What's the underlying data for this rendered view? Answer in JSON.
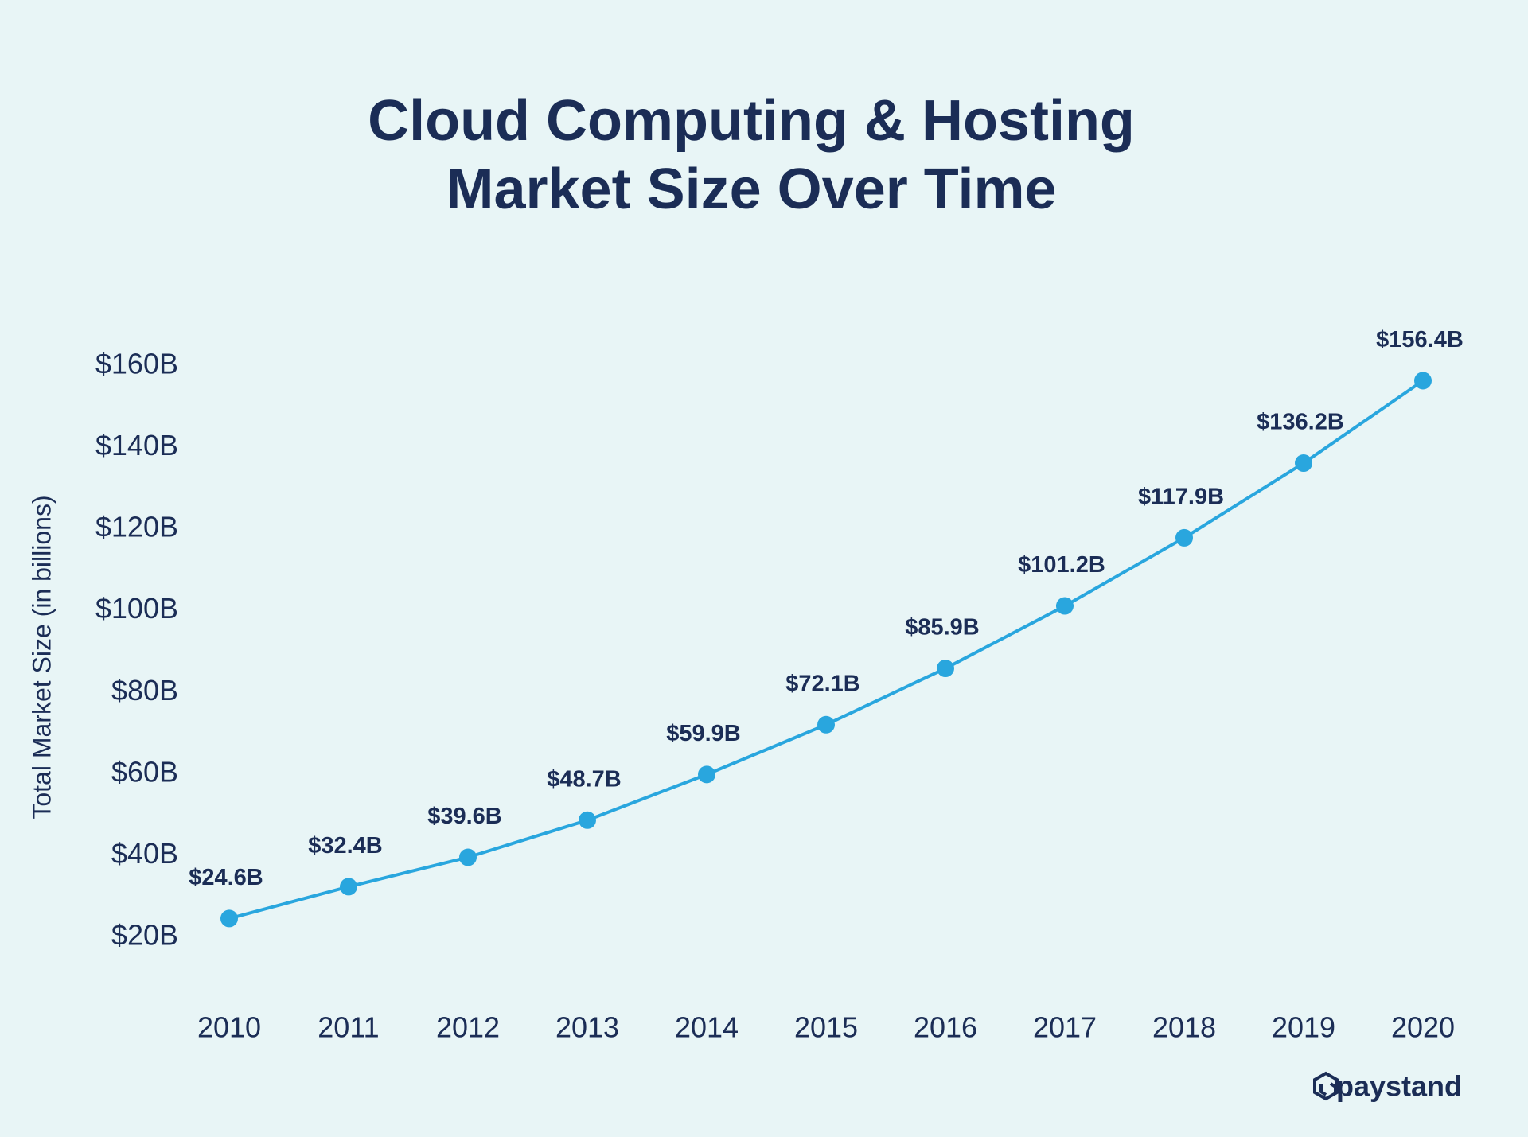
{
  "chart_data": {
    "type": "line",
    "title": [
      "Cloud Computing & Hosting",
      "Market Size Over Time"
    ],
    "y_label": "Total Market Size (in billions)",
    "categories": [
      "2010",
      "2011",
      "2012",
      "2013",
      "2014",
      "2015",
      "2016",
      "2017",
      "2018",
      "2019",
      "2020"
    ],
    "series": [
      {
        "name": "Total Market Size",
        "color": "#29a6de",
        "values": [
          24.6,
          32.4,
          39.6,
          48.7,
          59.9,
          72.1,
          85.9,
          101.2,
          117.9,
          136.2,
          156.4
        ],
        "value_labels": [
          "$24.6B",
          "$32.4B",
          "$39.6B",
          "$48.7B",
          "$59.9B",
          "$72.1B",
          "$85.9B",
          "$101.2B",
          "$117.9B",
          "$136.2B",
          "$156.4B"
        ]
      }
    ],
    "ylim": [
      20,
      160
    ],
    "yticks": [
      {
        "value": 20,
        "label": "$20B"
      },
      {
        "value": 40,
        "label": "$40B"
      },
      {
        "value": 60,
        "label": "$60B"
      },
      {
        "value": 80,
        "label": "$80B"
      },
      {
        "value": 100,
        "label": "$100B"
      },
      {
        "value": 120,
        "label": "$120B"
      },
      {
        "value": 140,
        "label": "$140B"
      },
      {
        "value": 160,
        "label": "$160B"
      }
    ],
    "grid": false,
    "brand": "paystand"
  }
}
